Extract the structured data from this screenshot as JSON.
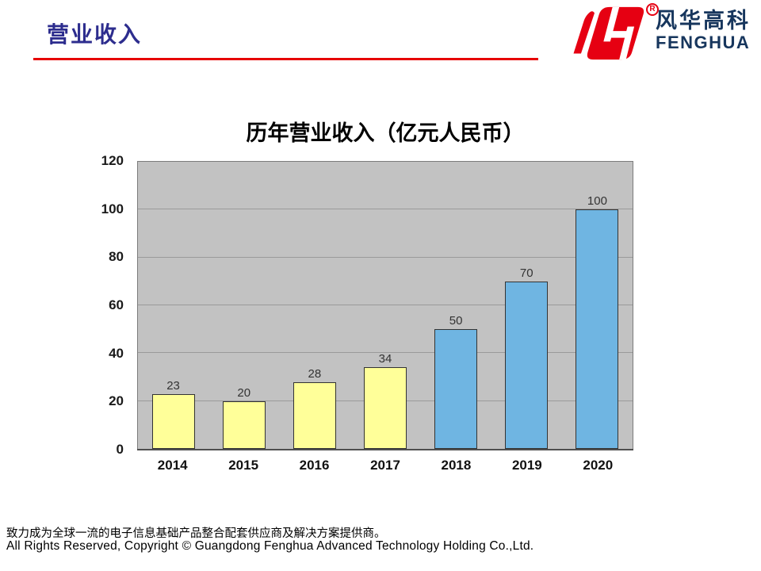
{
  "slide": {
    "title": "营业收入",
    "accent_rule_color": "#E60000",
    "footer_mission": "致力成为全球一流的电子信息基础产品整合配套供应商及解决方案提供商。",
    "footer_copyright": "All Rights Reserved, Copyright © Guangdong Fenghua Advanced Technology Holding Co.,Ltd."
  },
  "logo": {
    "brand_cn": "风华高科",
    "brand_en": "FENGHUA",
    "registered_mark": "R",
    "mark_color": "#E60012",
    "text_color": "#17365D"
  },
  "chart_data": {
    "type": "bar",
    "title": "历年营业收入（亿元人民币）",
    "categories": [
      "2014",
      "2015",
      "2016",
      "2017",
      "2018",
      "2019",
      "2020"
    ],
    "values": [
      23,
      20,
      28,
      34,
      50,
      70,
      100
    ],
    "bar_colors": [
      "#FFFF99",
      "#FFFF99",
      "#FFFF99",
      "#FFFF99",
      "#6FB5E2",
      "#6FB5E2",
      "#6FB5E2"
    ],
    "xlabel": "",
    "ylabel": "",
    "ylim": [
      0,
      120
    ],
    "yticks": [
      0,
      20,
      40,
      60,
      80,
      100,
      120
    ],
    "grid": true,
    "legend_position": "none",
    "plot_background": "#C2C2C2",
    "gridline_color": "#9A9A9A",
    "bar_border_color": "#333333"
  }
}
